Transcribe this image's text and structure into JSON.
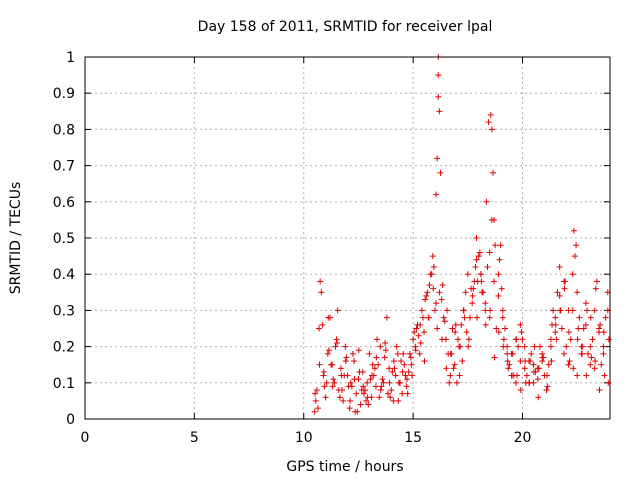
{
  "chart_data": {
    "type": "scatter",
    "title": "Day 158 of 2011, SRMTID for receiver lpal",
    "xlabel": "GPS time / hours",
    "ylabel": "SRMTID / TECUs",
    "xlim": [
      0,
      24
    ],
    "ylim": [
      0,
      1
    ],
    "xticks": [
      "0",
      "5",
      "10",
      "15",
      "20"
    ],
    "xtick_values": [
      0,
      5,
      10,
      15,
      20
    ],
    "yticks": [
      "0",
      "0.1",
      "0.2",
      "0.3",
      "0.4",
      "0.5",
      "0.6",
      "0.7",
      "0.8",
      "0.9",
      "1"
    ],
    "ytick_values": [
      0,
      0.1,
      0.2,
      0.3,
      0.4,
      0.5,
      0.6,
      0.7,
      0.8,
      0.9,
      1
    ],
    "grid": true,
    "marker": "+",
    "color": "#e00000",
    "series": [
      {
        "name": "SRMTID",
        "x": [
          10.5,
          10.6,
          10.7,
          10.8,
          10.9,
          11.0,
          11.1,
          11.2,
          11.3,
          11.4,
          11.5,
          11.6,
          11.7,
          11.8,
          11.9,
          12.0,
          12.1,
          12.2,
          12.3,
          12.4,
          12.5,
          12.6,
          12.7,
          12.8,
          12.9,
          13.0,
          13.1,
          13.2,
          13.3,
          13.4,
          13.5,
          13.6,
          13.7,
          13.8,
          13.9,
          14.0,
          14.1,
          14.2,
          14.3,
          14.4,
          14.5,
          14.6,
          14.7,
          14.8,
          14.9,
          15.0,
          15.1,
          15.2,
          15.3,
          15.4,
          15.5,
          15.6,
          15.7,
          15.8,
          15.9,
          16.0,
          16.1,
          16.2,
          16.3,
          16.4,
          16.5,
          16.6,
          16.7,
          16.8,
          16.9,
          17.0,
          17.1,
          17.2,
          17.3,
          17.4,
          17.5,
          17.6,
          17.7,
          17.8,
          17.9,
          18.0,
          18.1,
          18.2,
          18.3,
          18.4,
          18.5,
          18.6,
          18.7,
          18.8,
          18.9,
          19.0,
          19.1,
          19.2,
          19.3,
          19.4,
          19.5,
          19.6,
          19.7,
          19.8,
          19.9,
          20.0,
          20.1,
          20.2,
          20.3,
          20.4,
          20.5,
          20.6,
          20.7,
          20.8,
          20.9,
          21.0,
          21.1,
          21.2,
          21.3,
          21.4,
          21.5,
          21.6,
          21.7,
          21.8,
          21.9,
          22.0,
          22.1,
          22.2,
          22.3,
          22.4,
          22.5,
          22.6,
          22.7,
          22.8,
          22.9,
          23.0,
          23.1,
          23.2,
          23.3,
          23.4,
          23.5,
          23.6,
          23.7,
          23.8,
          23.9,
          10.55,
          10.75,
          10.95,
          11.15,
          11.35,
          11.55,
          11.75,
          11.95,
          12.15,
          12.35,
          12.55,
          12.75,
          12.95,
          13.15,
          13.35,
          13.55,
          13.75,
          13.95,
          14.15,
          14.35,
          14.55,
          14.75,
          14.95,
          15.15,
          15.35,
          15.55,
          15.75,
          15.95,
          16.05,
          16.1,
          16.15,
          16.15,
          16.15,
          16.2,
          16.25,
          16.35,
          16.55,
          16.75,
          16.95,
          17.15,
          17.35,
          17.55,
          17.75,
          17.85,
          17.95,
          18.05,
          18.15,
          18.35,
          18.45,
          18.55,
          18.6,
          18.65,
          18.7,
          18.75,
          18.95,
          19.05,
          19.15,
          19.35,
          19.55,
          19.75,
          19.95,
          20.15,
          20.35,
          20.55,
          20.75,
          20.95,
          21.15,
          21.35,
          21.55,
          21.75,
          21.95,
          22.15,
          22.35,
          22.45,
          22.55,
          22.75,
          22.95,
          23.15,
          23.35,
          23.55,
          23.75,
          23.95,
          10.65,
          10.85,
          11.05,
          11.25,
          11.45,
          11.65,
          11.85,
          12.05,
          12.25,
          12.45,
          12.65,
          12.85,
          13.05,
          13.25,
          13.45,
          13.65,
          13.85,
          14.05,
          14.25,
          14.45,
          14.65,
          14.85,
          15.05,
          15.25,
          15.45,
          15.65,
          15.85,
          16.05,
          16.45,
          16.65,
          16.85,
          17.05,
          17.25,
          17.45,
          17.65,
          17.9,
          18.1,
          18.3,
          18.5,
          18.9,
          19.1,
          19.3,
          19.5,
          19.7,
          19.9,
          20.1,
          20.3,
          20.5,
          20.7,
          20.9,
          21.1,
          21.3,
          21.5,
          21.7,
          21.9,
          22.1,
          22.3,
          22.5,
          22.7,
          22.9,
          23.1,
          23.3,
          23.5,
          23.7,
          23.9,
          10.52,
          10.72,
          10.92,
          11.12,
          11.32,
          11.52,
          11.72,
          11.92,
          12.12,
          12.32,
          12.52,
          12.72,
          12.92,
          13.12,
          13.32,
          13.52,
          13.72,
          13.92,
          14.12,
          14.32,
          14.52,
          14.72,
          14.92,
          15.12,
          15.32,
          15.52,
          15.72,
          15.92,
          16.32,
          16.52,
          16.72,
          16.92,
          17.12,
          17.32,
          17.52,
          17.72,
          17.92,
          18.12,
          18.32,
          18.52,
          18.72,
          18.92,
          19.12,
          19.32,
          19.52,
          19.72,
          19.92,
          20.12,
          20.32,
          20.52,
          20.72,
          20.92,
          21.12,
          21.32,
          21.52,
          21.72,
          21.92,
          22.12,
          22.32,
          22.52,
          22.72,
          22.92,
          23.12,
          23.32,
          23.52,
          23.72,
          23.92
        ],
        "y": [
          0.02,
          0.08,
          0.25,
          0.35,
          0.12,
          0.06,
          0.18,
          0.28,
          0.15,
          0.1,
          0.22,
          0.08,
          0.14,
          0.05,
          0.2,
          0.12,
          0.03,
          0.09,
          0.16,
          0.07,
          0.11,
          0.04,
          0.13,
          0.08,
          0.1,
          0.18,
          0.06,
          0.12,
          0.09,
          0.15,
          0.2,
          0.11,
          0.17,
          0.28,
          0.14,
          0.08,
          0.05,
          0.12,
          0.18,
          0.1,
          0.07,
          0.15,
          0.09,
          0.13,
          0.17,
          0.22,
          0.2,
          0.26,
          0.18,
          0.3,
          0.24,
          0.34,
          0.28,
          0.4,
          0.45,
          0.3,
          0.25,
          0.35,
          0.33,
          0.28,
          0.22,
          0.18,
          0.12,
          0.25,
          0.15,
          0.1,
          0.2,
          0.26,
          0.3,
          0.35,
          0.4,
          0.28,
          0.32,
          0.38,
          0.5,
          0.45,
          0.4,
          0.35,
          0.3,
          0.42,
          0.28,
          0.55,
          0.38,
          0.25,
          0.4,
          0.48,
          0.3,
          0.25,
          0.2,
          0.15,
          0.18,
          0.12,
          0.1,
          0.2,
          0.16,
          0.22,
          0.14,
          0.12,
          0.1,
          0.18,
          0.15,
          0.13,
          0.11,
          0.2,
          0.16,
          0.12,
          0.08,
          0.15,
          0.22,
          0.3,
          0.28,
          0.35,
          0.42,
          0.25,
          0.18,
          0.2,
          0.15,
          0.22,
          0.3,
          0.45,
          0.35,
          0.28,
          0.2,
          0.25,
          0.32,
          0.18,
          0.15,
          0.22,
          0.3,
          0.38,
          0.25,
          0.15,
          0.2,
          0.28,
          0.35,
          0.05,
          0.38,
          0.09,
          0.19,
          0.11,
          0.3,
          0.08,
          0.17,
          0.1,
          0.02,
          0.13,
          0.07,
          0.04,
          0.15,
          0.22,
          0.09,
          0.19,
          0.06,
          0.14,
          0.1,
          0.18,
          0.07,
          0.12,
          0.25,
          0.21,
          0.33,
          0.37,
          0.42,
          0.62,
          0.72,
          1.0,
          0.95,
          0.89,
          0.85,
          0.68,
          0.37,
          0.3,
          0.18,
          0.26,
          0.2,
          0.28,
          0.22,
          0.36,
          0.42,
          0.38,
          0.46,
          0.35,
          0.6,
          0.82,
          0.84,
          0.8,
          0.68,
          0.55,
          0.48,
          0.44,
          0.36,
          0.22,
          0.14,
          0.18,
          0.12,
          0.24,
          0.1,
          0.16,
          0.2,
          0.14,
          0.17,
          0.09,
          0.26,
          0.22,
          0.3,
          0.38,
          0.16,
          0.52,
          0.48,
          0.25,
          0.2,
          0.3,
          0.17,
          0.36,
          0.26,
          0.12,
          0.22,
          0.03,
          0.26,
          0.1,
          0.15,
          0.2,
          0.06,
          0.12,
          0.09,
          0.18,
          0.02,
          0.08,
          0.05,
          0.11,
          0.14,
          0.06,
          0.1,
          0.07,
          0.13,
          0.2,
          0.16,
          0.12,
          0.18,
          0.24,
          0.23,
          0.28,
          0.35,
          0.4,
          0.32,
          0.27,
          0.1,
          0.14,
          0.22,
          0.16,
          0.24,
          0.36,
          0.44,
          0.4,
          0.32,
          0.46,
          0.34,
          0.28,
          0.18,
          0.12,
          0.22,
          0.26,
          0.2,
          0.16,
          0.1,
          0.14,
          0.18,
          0.08,
          0.2,
          0.24,
          0.34,
          0.38,
          0.3,
          0.4,
          0.12,
          0.18,
          0.26,
          0.2,
          0.14,
          0.24,
          0.18,
          0.3,
          0.07,
          0.15,
          0.13,
          0.28,
          0.09,
          0.21,
          0.12,
          0.16,
          0.05,
          0.11,
          0.19,
          0.09,
          0.06,
          0.12,
          0.17,
          0.08,
          0.21,
          0.1,
          0.16,
          0.05,
          0.13,
          0.11,
          0.15,
          0.19,
          0.26,
          0.16,
          0.28,
          0.36,
          0.22,
          0.14,
          0.18,
          0.24,
          0.12,
          0.3,
          0.2,
          0.34,
          0.28,
          0.38,
          0.26,
          0.3,
          0.17,
          0.24,
          0.2,
          0.16,
          0.12,
          0.22,
          0.08,
          0.16,
          0.1,
          0.13,
          0.06,
          0.17,
          0.12,
          0.16,
          0.26,
          0.3,
          0.36,
          0.24,
          0.14,
          0.22,
          0.18,
          0.12,
          0.28,
          0.16,
          0.08,
          0.24,
          0.1
        ]
      }
    ]
  }
}
